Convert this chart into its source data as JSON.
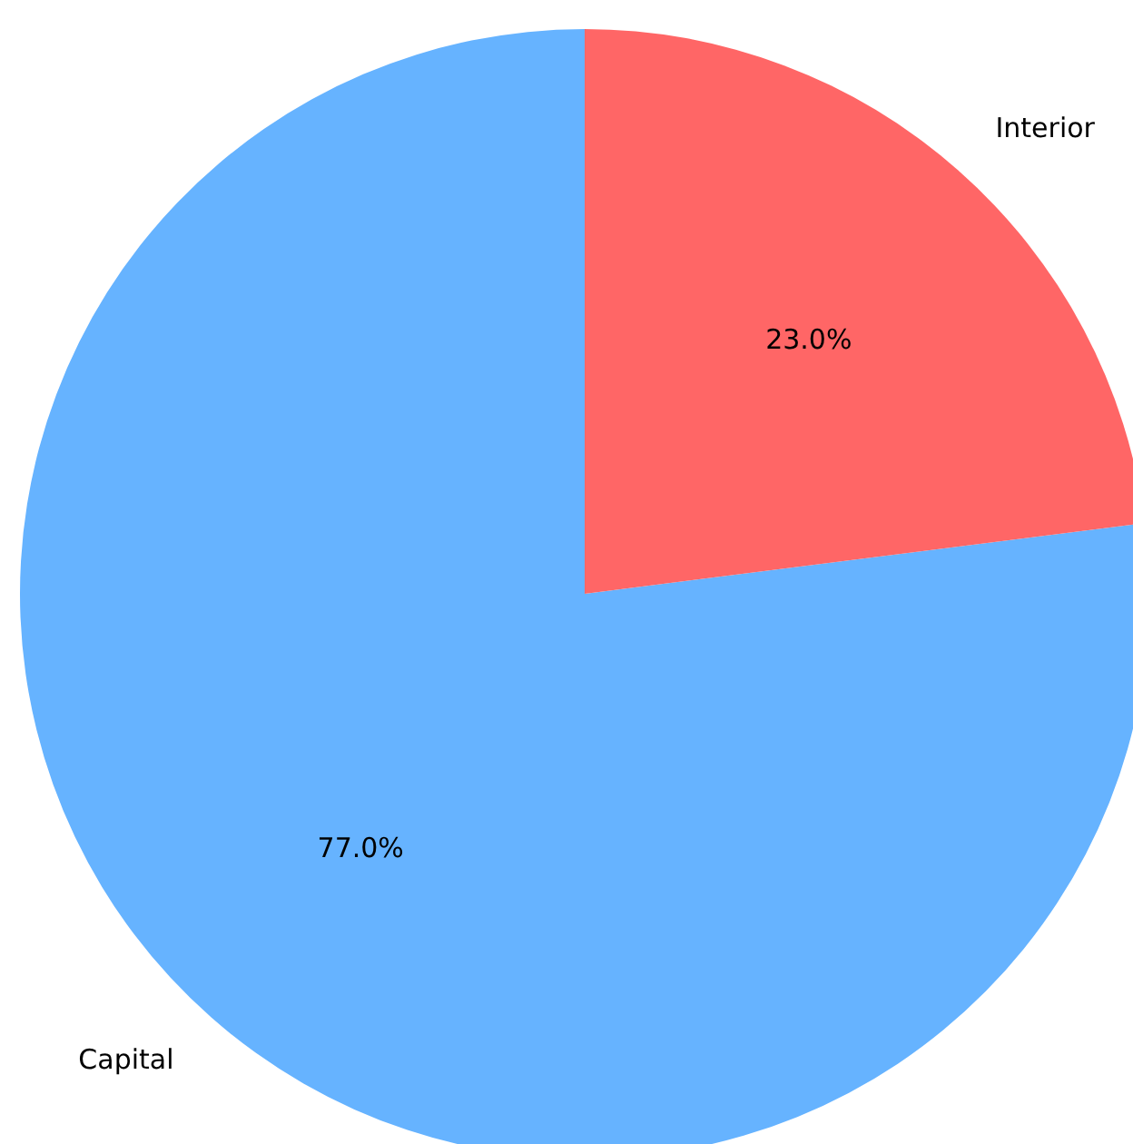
{
  "chart_data": {
    "type": "pie",
    "categories": [
      "Capital",
      "Interior"
    ],
    "values": [
      77.0,
      23.0
    ],
    "colors": [
      "#66b3ff",
      "#ff6666"
    ],
    "value_labels": [
      "77.0%",
      "23.0%"
    ]
  }
}
